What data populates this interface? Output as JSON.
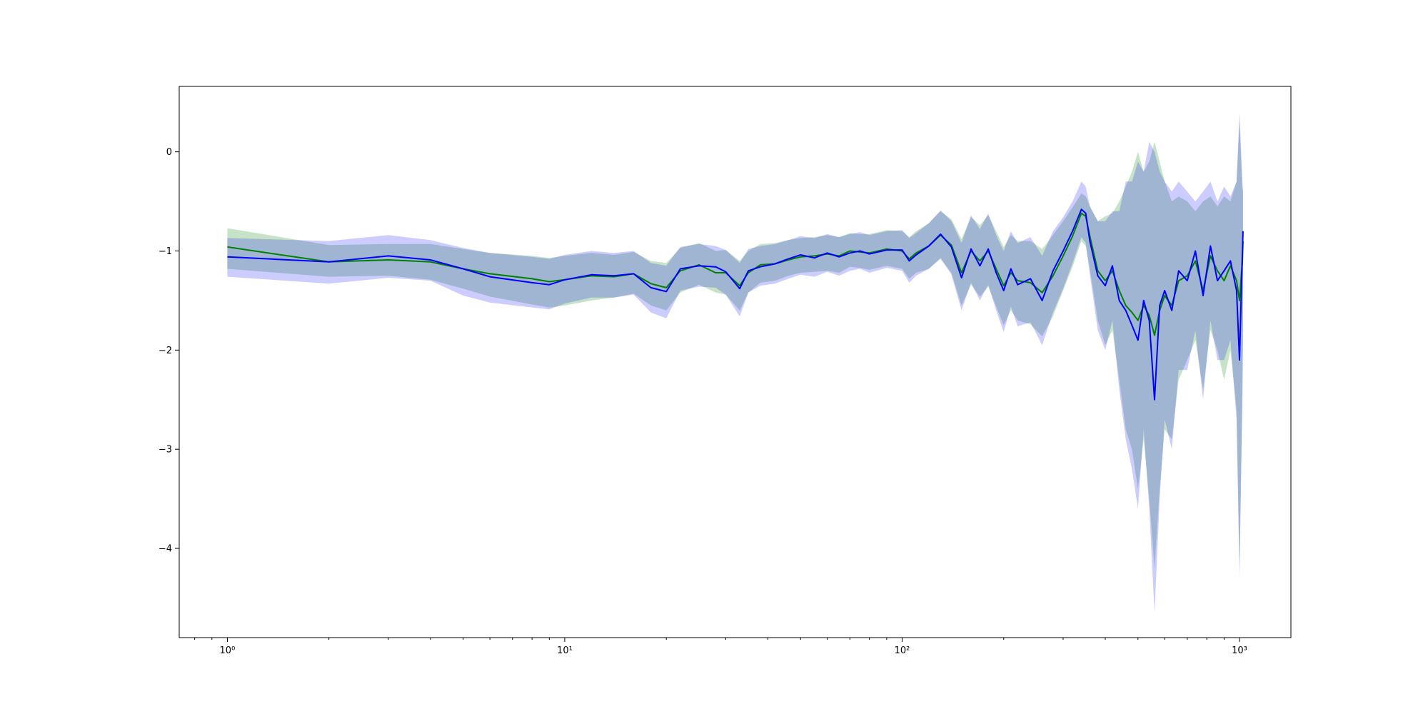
{
  "chart_data": {
    "type": "line",
    "title": "",
    "xlabel": "",
    "ylabel": "",
    "xscale": "log",
    "xlim": [
      0.72,
      1420
    ],
    "ylim": [
      -4.9,
      0.66
    ],
    "grid": false,
    "legend": "none",
    "x_ticks": [
      {
        "value": 1,
        "label": "10⁰"
      },
      {
        "value": 10,
        "label": "10¹"
      },
      {
        "value": 100,
        "label": "10²"
      },
      {
        "value": 1000,
        "label": "10³"
      }
    ],
    "y_ticks": [
      {
        "value": 0,
        "label": "0"
      },
      {
        "value": -1,
        "label": "−1"
      },
      {
        "value": -2,
        "label": "−2"
      },
      {
        "value": -3,
        "label": "−3"
      },
      {
        "value": -4,
        "label": "−4"
      }
    ],
    "series": [
      {
        "color": "#008000",
        "band_color": "#008000",
        "band_opacity": 0.22,
        "x": [
          1,
          2,
          3,
          4,
          5,
          6,
          8,
          9,
          10,
          12,
          14,
          16,
          18,
          20,
          22,
          25,
          28,
          30,
          33,
          35,
          38,
          42,
          46,
          50,
          55,
          60,
          65,
          70,
          75,
          80,
          90,
          100,
          105,
          110,
          120,
          130,
          140,
          150,
          160,
          170,
          180,
          190,
          200,
          210,
          220,
          240,
          260,
          280,
          300,
          320,
          340,
          350,
          360,
          380,
          400,
          420,
          440,
          460,
          480,
          500,
          520,
          540,
          560,
          580,
          600,
          630,
          660,
          700,
          740,
          780,
          820,
          860,
          900,
          940,
          980,
          1000,
          1020,
          1024
        ],
        "y": [
          -0.96,
          -1.11,
          -1.09,
          -1.11,
          -1.18,
          -1.23,
          -1.28,
          -1.31,
          -1.29,
          -1.25,
          -1.26,
          -1.23,
          -1.33,
          -1.37,
          -1.2,
          -1.14,
          -1.22,
          -1.22,
          -1.35,
          -1.22,
          -1.14,
          -1.13,
          -1.09,
          -1.06,
          -1.05,
          -1.03,
          -1.05,
          -1.0,
          -1.01,
          -1.02,
          -0.98,
          -1.0,
          -1.08,
          -1.02,
          -0.95,
          -0.84,
          -0.94,
          -1.22,
          -1.0,
          -1.1,
          -1.0,
          -1.18,
          -1.35,
          -1.22,
          -1.3,
          -1.32,
          -1.42,
          -1.25,
          -1.05,
          -0.85,
          -0.62,
          -0.65,
          -0.85,
          -1.2,
          -1.3,
          -1.2,
          -1.4,
          -1.55,
          -1.62,
          -1.7,
          -1.55,
          -1.65,
          -1.85,
          -1.6,
          -1.45,
          -1.55,
          -1.3,
          -1.25,
          -1.1,
          -1.4,
          -1.05,
          -1.2,
          -1.3,
          -1.15,
          -1.3,
          -1.5,
          -1.1,
          -0.9
        ],
        "lower": [
          -1.18,
          -1.26,
          -1.25,
          -1.29,
          -1.38,
          -1.46,
          -1.54,
          -1.57,
          -1.55,
          -1.5,
          -1.47,
          -1.43,
          -1.55,
          -1.6,
          -1.42,
          -1.34,
          -1.42,
          -1.44,
          -1.6,
          -1.42,
          -1.32,
          -1.3,
          -1.25,
          -1.22,
          -1.21,
          -1.2,
          -1.22,
          -1.16,
          -1.17,
          -1.19,
          -1.15,
          -1.18,
          -1.28,
          -1.22,
          -1.18,
          -1.08,
          -1.22,
          -1.55,
          -1.34,
          -1.46,
          -1.36,
          -1.56,
          -1.75,
          -1.6,
          -1.7,
          -1.74,
          -1.86,
          -1.66,
          -1.4,
          -1.16,
          -0.9,
          -0.95,
          -1.18,
          -1.7,
          -1.95,
          -1.8,
          -2.3,
          -2.8,
          -3.0,
          -3.4,
          -2.9,
          -3.5,
          -4.2,
          -3.4,
          -2.8,
          -2.9,
          -2.3,
          -2.1,
          -1.9,
          -2.4,
          -1.8,
          -2.0,
          -2.3,
          -2.0,
          -2.6,
          -4.2,
          -2.5,
          -1.9
        ],
        "upper": [
          -0.77,
          -0.94,
          -0.93,
          -0.93,
          -0.98,
          -1.02,
          -1.05,
          -1.07,
          -1.05,
          -1.02,
          -1.04,
          -1.01,
          -1.1,
          -1.12,
          -0.97,
          -0.92,
          -1.0,
          -0.99,
          -1.1,
          -1.0,
          -0.93,
          -0.92,
          -0.89,
          -0.87,
          -0.86,
          -0.84,
          -0.86,
          -0.82,
          -0.83,
          -0.83,
          -0.79,
          -0.8,
          -0.86,
          -0.8,
          -0.72,
          -0.6,
          -0.68,
          -0.88,
          -0.66,
          -0.74,
          -0.64,
          -0.8,
          -0.96,
          -0.84,
          -0.9,
          -0.9,
          -0.98,
          -0.84,
          -0.7,
          -0.56,
          -0.42,
          -0.45,
          -0.55,
          -0.7,
          -0.65,
          -0.62,
          -0.5,
          -0.35,
          -0.2,
          0.0,
          -0.2,
          -0.1,
          0.1,
          -0.1,
          -0.3,
          -0.5,
          -0.45,
          -0.5,
          -0.6,
          -0.5,
          -0.45,
          -0.55,
          -0.45,
          -0.5,
          -0.3,
          0.3,
          -0.4,
          -0.35
        ]
      },
      {
        "color": "#0000ff",
        "band_color": "#0000ff",
        "band_opacity": 0.2,
        "x": [
          1,
          2,
          3,
          4,
          5,
          6,
          8,
          9,
          10,
          12,
          14,
          16,
          18,
          20,
          22,
          25,
          28,
          30,
          33,
          35,
          38,
          42,
          46,
          50,
          55,
          60,
          65,
          70,
          75,
          80,
          90,
          100,
          105,
          110,
          120,
          130,
          140,
          150,
          160,
          170,
          180,
          190,
          200,
          210,
          220,
          240,
          260,
          280,
          300,
          320,
          340,
          350,
          360,
          380,
          400,
          420,
          440,
          460,
          480,
          500,
          520,
          540,
          560,
          580,
          600,
          630,
          660,
          700,
          740,
          780,
          820,
          860,
          900,
          940,
          980,
          1000,
          1020,
          1024
        ],
        "y": [
          -1.06,
          -1.11,
          -1.05,
          -1.09,
          -1.18,
          -1.26,
          -1.32,
          -1.34,
          -1.29,
          -1.24,
          -1.25,
          -1.23,
          -1.37,
          -1.41,
          -1.18,
          -1.15,
          -1.16,
          -1.21,
          -1.38,
          -1.2,
          -1.16,
          -1.13,
          -1.08,
          -1.04,
          -1.07,
          -1.02,
          -1.06,
          -1.02,
          -1.0,
          -1.03,
          -0.99,
          -0.99,
          -1.1,
          -1.04,
          -0.95,
          -0.83,
          -0.96,
          -1.27,
          -0.98,
          -1.15,
          -0.98,
          -1.22,
          -1.4,
          -1.18,
          -1.34,
          -1.28,
          -1.5,
          -1.2,
          -1.0,
          -0.8,
          -0.58,
          -0.62,
          -0.9,
          -1.25,
          -1.35,
          -1.15,
          -1.5,
          -1.6,
          -1.75,
          -1.9,
          -1.5,
          -1.7,
          -2.5,
          -1.55,
          -1.4,
          -1.6,
          -1.2,
          -1.3,
          -1.0,
          -1.45,
          -0.95,
          -1.3,
          -1.2,
          -1.1,
          -1.4,
          -2.1,
          -1.0,
          -0.8
        ],
        "lower": [
          -1.26,
          -1.33,
          -1.27,
          -1.3,
          -1.45,
          -1.52,
          -1.57,
          -1.59,
          -1.53,
          -1.47,
          -1.47,
          -1.44,
          -1.62,
          -1.68,
          -1.4,
          -1.36,
          -1.37,
          -1.44,
          -1.66,
          -1.42,
          -1.35,
          -1.33,
          -1.28,
          -1.24,
          -1.26,
          -1.21,
          -1.25,
          -1.2,
          -1.18,
          -1.22,
          -1.17,
          -1.2,
          -1.32,
          -1.25,
          -1.18,
          -1.07,
          -1.24,
          -1.6,
          -1.32,
          -1.5,
          -1.34,
          -1.6,
          -1.82,
          -1.56,
          -1.76,
          -1.72,
          -1.95,
          -1.62,
          -1.38,
          -1.12,
          -0.86,
          -0.92,
          -1.24,
          -1.8,
          -2.0,
          -1.7,
          -2.4,
          -2.9,
          -3.2,
          -3.6,
          -2.8,
          -3.6,
          -4.65,
          -3.5,
          -2.7,
          -3.0,
          -2.2,
          -2.2,
          -1.8,
          -2.5,
          -1.7,
          -2.1,
          -2.1,
          -1.9,
          -2.7,
          -4.3,
          -2.4,
          -1.8
        ],
        "upper": [
          -0.87,
          -0.9,
          -0.84,
          -0.89,
          -0.97,
          -1.02,
          -1.06,
          -1.08,
          -1.04,
          -1.0,
          -1.02,
          -1.0,
          -1.12,
          -1.15,
          -0.96,
          -0.93,
          -0.95,
          -0.99,
          -1.12,
          -0.98,
          -0.95,
          -0.93,
          -0.89,
          -0.85,
          -0.87,
          -0.83,
          -0.86,
          -0.83,
          -0.81,
          -0.84,
          -0.8,
          -0.79,
          -0.87,
          -0.82,
          -0.72,
          -0.59,
          -0.7,
          -0.92,
          -0.64,
          -0.78,
          -0.62,
          -0.84,
          -1.0,
          -0.8,
          -0.92,
          -0.86,
          -1.05,
          -0.8,
          -0.66,
          -0.5,
          -0.3,
          -0.35,
          -0.55,
          -0.7,
          -0.7,
          -0.6,
          -0.6,
          -0.3,
          -0.3,
          -0.1,
          -0.2,
          0.1,
          0.0,
          -0.2,
          -0.3,
          -0.4,
          -0.3,
          -0.4,
          -0.5,
          -0.4,
          -0.3,
          -0.5,
          -0.35,
          -0.45,
          -0.3,
          0.4,
          -0.3,
          -0.4
        ]
      }
    ]
  }
}
